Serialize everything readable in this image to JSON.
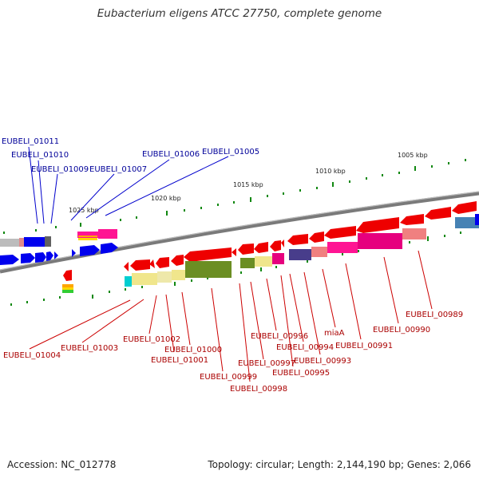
{
  "title": "Eubacterium eligens ATCC 27750, complete genome",
  "footer": {
    "accession": "Accession: NC_012778",
    "topology": "Topology: circular; Length: 2,144,190 bp; Genes: 2,066"
  },
  "scale_labels": [
    "1025 kbp",
    "1020 kbp",
    "1015 kbp",
    "1010 kbp",
    "1005 kbp"
  ],
  "colors": {
    "forward_strand": "#0000ee",
    "reverse_strand": "#ee0000",
    "forward_label": "#000099",
    "reverse_label": "#aa0000",
    "backbone": "#888888",
    "ticks": "#118811"
  },
  "forward_genes": [
    "EUBELI_01011",
    "EUBELI_01010",
    "EUBELI_01009",
    "EUBELI_01007",
    "EUBELI_01006",
    "EUBELI_01005"
  ],
  "reverse_genes": [
    "EUBELI_01004",
    "EUBELI_01003",
    "EUBELI_01002",
    "EUBELI_01001",
    "EUBELI_01000",
    "EUBELI_00999",
    "EUBELI_00998",
    "EUBELI_00997",
    "EUBELI_00996",
    "EUBELI_00995",
    "EUBELI_00994",
    "EUBELI_00993",
    "miaA",
    "EUBELI_00991",
    "EUBELI_00990",
    "EUBELI_00989"
  ]
}
